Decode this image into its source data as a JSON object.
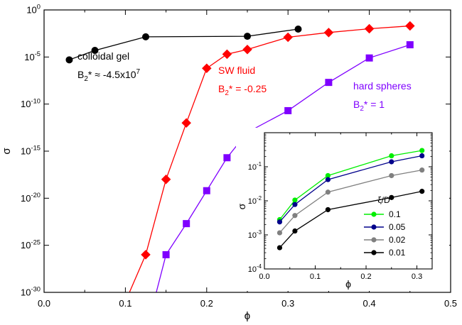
{
  "chart_data": [
    {
      "type": "line",
      "xlabel": "ϕ",
      "ylabel": "σ",
      "xlim": [
        0.0,
        0.5
      ],
      "ylim": [
        1e-30,
        1
      ],
      "yscale": "log",
      "x_ticks": [
        {
          "value": 0.0,
          "label": "0.0"
        },
        {
          "value": 0.1,
          "label": "0.1"
        },
        {
          "value": 0.2,
          "label": "0.2"
        },
        {
          "value": 0.3,
          "label": "0.3"
        },
        {
          "value": 0.4,
          "label": "0.4"
        },
        {
          "value": 0.5,
          "label": "0.5"
        }
      ],
      "y_ticks": [
        {
          "exp": 0,
          "base": "10",
          "sup": "0"
        },
        {
          "exp": -5,
          "base": "10",
          "sup": "-5"
        },
        {
          "exp": -10,
          "base": "10",
          "sup": "-10"
        },
        {
          "exp": -15,
          "base": "10",
          "sup": "-15"
        },
        {
          "exp": -20,
          "base": "10",
          "sup": "-20"
        },
        {
          "exp": -25,
          "base": "10",
          "sup": "-25"
        },
        {
          "exp": -30,
          "base": "10",
          "sup": "-30"
        }
      ],
      "series": [
        {
          "color": "#000000",
          "marker": "circle",
          "x": [
            0.031,
            0.0625,
            0.125,
            0.25,
            0.3125
          ],
          "y": [
            5e-06,
            5e-05,
            0.0014,
            0.0016,
            0.0092
          ]
        },
        {
          "color": "#ff0000",
          "marker": "diamond",
          "x": [
            0.1,
            0.125,
            0.15,
            0.175,
            0.2,
            0.225,
            0.25,
            0.3,
            0.35,
            0.4,
            0.45
          ],
          "y": [
            1e-31,
            1e-26,
            1e-18,
            1e-12,
            6.3e-07,
            2e-05,
            6.3e-05,
            0.00126,
            0.004,
            0.01,
            0.02
          ]
        },
        {
          "color": "#7f00ff",
          "marker": "square",
          "x": [
            0.135,
            0.15,
            0.175,
            0.2,
            0.225,
            0.25,
            0.3,
            0.35,
            0.4,
            0.45
          ],
          "y": [
            1e-31,
            1e-26,
            2e-23,
            6.3e-20,
            2e-16,
            1e-13,
            2e-11,
            2e-08,
            7.9e-06,
            0.0002
          ]
        }
      ],
      "annotations": [
        {
          "id": "gel",
          "color": "#000000",
          "line1": "colloidal gel",
          "b_pre": "B",
          "b_sub": "2",
          "b_mid": "* ≈ -4.5x10",
          "b_sup": "7"
        },
        {
          "id": "sw",
          "color": "#ff0000",
          "line1": "SW fluid",
          "b_pre": "B",
          "b_sub": "2",
          "b_mid": "* = -0.25",
          "b_sup": ""
        },
        {
          "id": "hs",
          "color": "#7f00ff",
          "line1": "hard spheres",
          "b_pre": "B",
          "b_sub": "2",
          "b_mid": "* = 1",
          "b_sup": ""
        }
      ]
    },
    {
      "type": "line",
      "xlabel": "ϕ",
      "ylabel": "σ",
      "xlim": [
        0.0,
        0.33
      ],
      "ylim": [
        0.0001,
        1
      ],
      "yscale": "log",
      "x_ticks": [
        {
          "value": 0.0,
          "label": "0.0"
        },
        {
          "value": 0.1,
          "label": "0.1"
        },
        {
          "value": 0.2,
          "label": "0.2"
        },
        {
          "value": 0.3,
          "label": "0.3"
        }
      ],
      "y_ticks": [
        {
          "exp": -1,
          "base": "10",
          "sup": "-1"
        },
        {
          "exp": -2,
          "base": "10",
          "sup": "-2"
        },
        {
          "exp": -3,
          "base": "10",
          "sup": "-3"
        },
        {
          "exp": -4,
          "base": "10",
          "sup": "-4"
        }
      ],
      "legend": {
        "title": "ξ/D",
        "position": "bottom-right"
      },
      "series": [
        {
          "name": "0.1",
          "color": "#00ee00",
          "x": [
            0.03,
            0.06,
            0.125,
            0.25,
            0.31
          ],
          "y": [
            0.0028,
            0.0105,
            0.055,
            0.21,
            0.3
          ]
        },
        {
          "name": "0.05",
          "color": "#00008b",
          "x": [
            0.03,
            0.06,
            0.125,
            0.25,
            0.31
          ],
          "y": [
            0.0024,
            0.0078,
            0.042,
            0.14,
            0.21
          ]
        },
        {
          "name": "0.02",
          "color": "#808080",
          "x": [
            0.03,
            0.06,
            0.125,
            0.25,
            0.31
          ],
          "y": [
            0.00115,
            0.0037,
            0.018,
            0.055,
            0.08
          ]
        },
        {
          "name": "0.01",
          "color": "#000000",
          "x": [
            0.03,
            0.06,
            0.125,
            0.25,
            0.31
          ],
          "y": [
            0.00042,
            0.0013,
            0.0055,
            0.0125,
            0.019
          ]
        }
      ]
    }
  ]
}
